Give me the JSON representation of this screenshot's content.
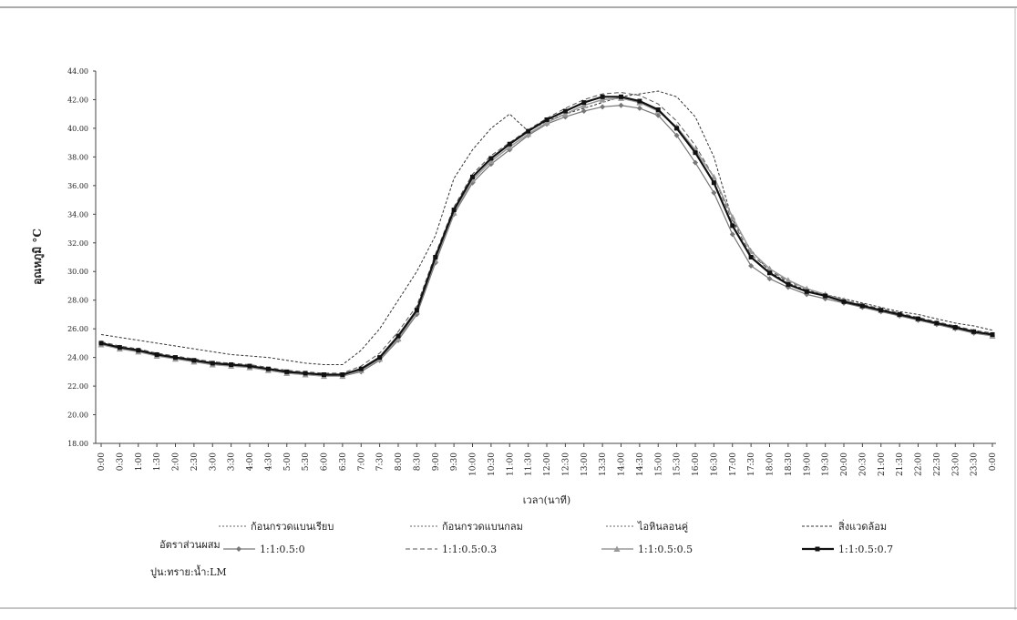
{
  "chart_data": {
    "type": "line",
    "y_label": "อุณหภูมิ °C",
    "x_label": "เวลา(นาที)",
    "legend_title_1": "อัตราส่วนผสม",
    "legend_title_2": "ปูน:ทราย:น้ำ:LM",
    "legend_extra": [
      "ก้อนกรวดแบนเรียบ",
      "ก้อนกรวดแบนกลม",
      "ไอหินลอนคู่"
    ],
    "categories": [
      "0:00",
      "0:30",
      "1:00",
      "1:30",
      "2:00",
      "2:30",
      "3:00",
      "3:30",
      "4:00",
      "4:30",
      "5:00",
      "5:30",
      "6:00",
      "6:30",
      "7:00",
      "7:30",
      "8:00",
      "8:30",
      "9:00",
      "9:30",
      "10:00",
      "10:30",
      "11:00",
      "11:30",
      "12:00",
      "12:30",
      "13:00",
      "13:30",
      "14:00",
      "14:30",
      "15:00",
      "15:30",
      "16:00",
      "16:30",
      "17:00",
      "17:30",
      "18:00",
      "18:30",
      "19:00",
      "19:30",
      "20:00",
      "20:30",
      "21:00",
      "21:30",
      "22:00",
      "22:30",
      "23:00",
      "23:30",
      "0:00"
    ],
    "ylim": [
      18,
      44
    ],
    "yticks": [
      {
        "value": 18,
        "label": "18.00"
      },
      {
        "value": 20,
        "label": "20.00"
      },
      {
        "value": 22,
        "label": "22.00"
      },
      {
        "value": 24,
        "label": "24.00"
      },
      {
        "value": 26,
        "label": "26.00"
      },
      {
        "value": 28,
        "label": "28.00"
      },
      {
        "value": 30,
        "label": "30.00"
      },
      {
        "value": 32,
        "label": "32.00"
      },
      {
        "value": 34,
        "label": "34.00"
      },
      {
        "value": 36,
        "label": "36.00"
      },
      {
        "value": 38,
        "label": "38.00"
      },
      {
        "value": 40,
        "label": "40.00"
      },
      {
        "value": 42,
        "label": "42.00"
      },
      {
        "value": 44,
        "label": "44.00"
      }
    ],
    "series": [
      {
        "name": "สิ่งแวดล้อม",
        "color": "#333333",
        "dash": "3,2",
        "marker": "none",
        "width": 1,
        "values": [
          25.6,
          25.4,
          25.2,
          25.0,
          24.8,
          24.6,
          24.4,
          24.2,
          24.1,
          24.0,
          23.8,
          23.6,
          23.5,
          23.5,
          24.5,
          26.0,
          28.0,
          30.0,
          32.5,
          36.5,
          38.5,
          40.0,
          41.0,
          39.8,
          40.5,
          41.0,
          41.4,
          41.8,
          42.2,
          42.4,
          42.6,
          42.2,
          40.8,
          38.0,
          33.6,
          31.5,
          30.0,
          29.2,
          28.7,
          28.4,
          28.1,
          27.8,
          27.5,
          27.2,
          27.0,
          26.7,
          26.4,
          26.2,
          25.9
        ]
      },
      {
        "name": "1:1:0.5:0",
        "color": "#777777",
        "dash": "",
        "marker": "diamond",
        "width": 1.2,
        "values": [
          25.0,
          24.7,
          24.5,
          24.2,
          23.9,
          23.7,
          23.5,
          23.4,
          23.3,
          23.1,
          22.9,
          22.8,
          22.7,
          22.7,
          23.0,
          23.8,
          25.2,
          27.0,
          30.6,
          34.0,
          36.2,
          37.5,
          38.5,
          39.5,
          40.3,
          40.8,
          41.2,
          41.5,
          41.6,
          41.4,
          40.9,
          39.5,
          37.6,
          35.5,
          32.6,
          30.4,
          29.5,
          28.9,
          28.4,
          28.1,
          27.8,
          27.5,
          27.2,
          26.9,
          26.6,
          26.3,
          26.0,
          25.7,
          25.5
        ]
      },
      {
        "name": "1:1:0.5:0.3",
        "color": "#555555",
        "dash": "5,3",
        "marker": "none",
        "width": 1,
        "values": [
          25.1,
          24.8,
          24.6,
          24.3,
          24.1,
          23.9,
          23.7,
          23.6,
          23.5,
          23.3,
          23.1,
          23.0,
          22.9,
          22.9,
          23.4,
          24.3,
          25.8,
          27.6,
          31.2,
          34.5,
          36.8,
          38.1,
          39.0,
          39.9,
          40.7,
          41.4,
          42.0,
          42.4,
          42.5,
          42.3,
          41.7,
          40.5,
          38.8,
          36.6,
          33.5,
          31.2,
          30.1,
          29.3,
          28.8,
          28.4,
          28.0,
          27.7,
          27.4,
          27.1,
          26.8,
          26.5,
          26.2,
          25.9,
          25.7
        ]
      },
      {
        "name": "1:1:0.5:0.5",
        "color": "#999999",
        "dash": "",
        "marker": "triangle",
        "width": 1.5,
        "values": [
          24.9,
          24.6,
          24.4,
          24.1,
          23.9,
          23.7,
          23.5,
          23.4,
          23.3,
          23.1,
          22.9,
          22.8,
          22.7,
          22.7,
          23.1,
          23.9,
          25.3,
          27.2,
          30.8,
          34.1,
          36.4,
          37.7,
          38.7,
          39.6,
          40.4,
          41.0,
          41.6,
          42.0,
          42.1,
          41.8,
          41.2,
          40.1,
          38.5,
          36.6,
          33.8,
          31.4,
          30.2,
          29.4,
          28.8,
          28.4,
          28.0,
          27.6,
          27.3,
          27.0,
          26.7,
          26.4,
          26.1,
          25.8,
          25.5
        ]
      },
      {
        "name": "1:1:0.5:0.7",
        "color": "#111111",
        "dash": "",
        "marker": "square",
        "width": 2.2,
        "values": [
          25.0,
          24.7,
          24.5,
          24.2,
          24.0,
          23.8,
          23.6,
          23.5,
          23.4,
          23.2,
          23.0,
          22.9,
          22.8,
          22.8,
          23.2,
          24.0,
          25.5,
          27.3,
          31.0,
          34.3,
          36.6,
          37.9,
          38.9,
          39.8,
          40.6,
          41.2,
          41.8,
          42.2,
          42.2,
          41.9,
          41.3,
          40.0,
          38.3,
          36.2,
          33.2,
          31.0,
          29.9,
          29.1,
          28.6,
          28.3,
          27.9,
          27.6,
          27.3,
          27.0,
          26.7,
          26.4,
          26.1,
          25.8,
          25.6
        ]
      }
    ]
  }
}
